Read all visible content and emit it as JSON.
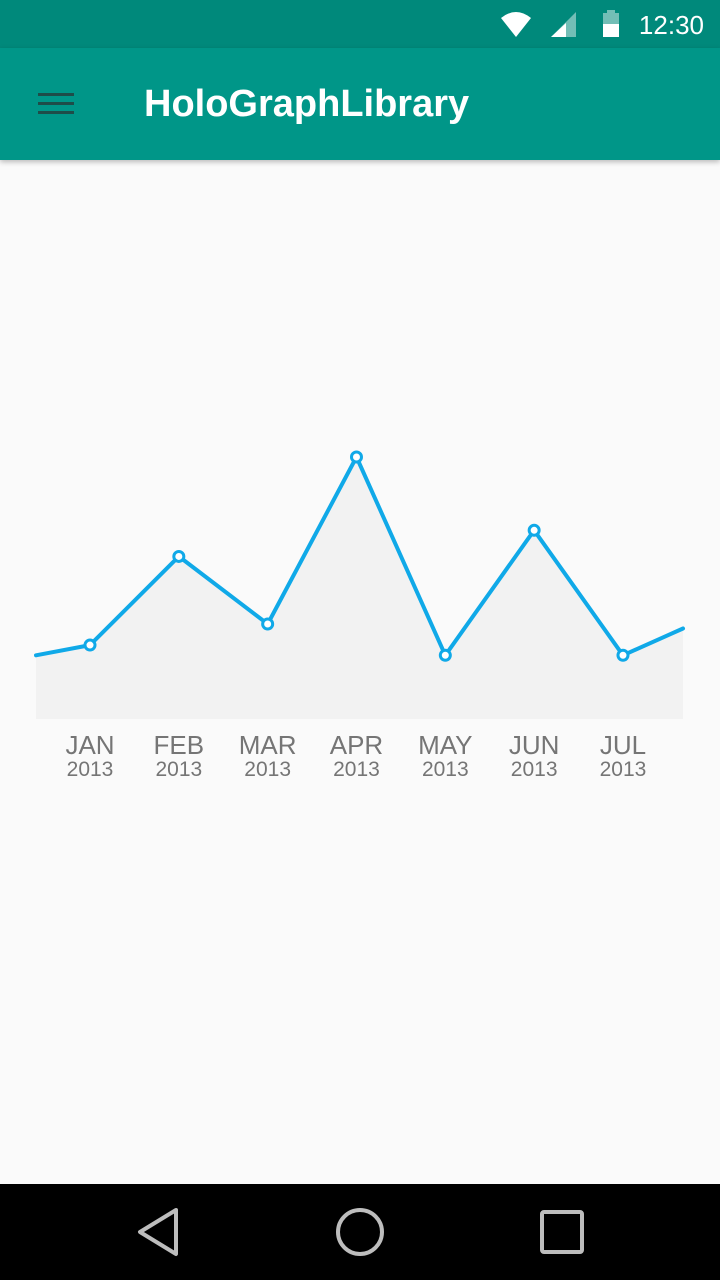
{
  "status_bar": {
    "time": "12:30",
    "icons": [
      "wifi-icon",
      "cell-signal-icon",
      "battery-icon"
    ]
  },
  "app_bar": {
    "title": "HoloGraphLibrary",
    "menu_icon": "hamburger-menu-icon"
  },
  "nav_bar": {
    "icons": [
      "back-triangle-icon",
      "home-circle-icon",
      "recents-square-icon"
    ]
  },
  "colors": {
    "status_bar": "#00897b",
    "app_bar": "#009688",
    "line": "#10a9e8",
    "fill": "#f2f2f2",
    "label": "#757575",
    "background": "#fafafa"
  },
  "chart_data": {
    "type": "area",
    "categories": [
      "JAN",
      "FEB",
      "MAR",
      "APR",
      "MAY",
      "JUN",
      "JUL"
    ],
    "sublabels": [
      "2013",
      "2013",
      "2013",
      "2013",
      "2013",
      "2013",
      "2013"
    ],
    "values": [
      1.16,
      2.55,
      1.49,
      4.11,
      1.0,
      2.96,
      1.0
    ],
    "start_value": 1.0,
    "end_value": 1.42,
    "ylim": [
      0,
      4.11
    ],
    "grid": false,
    "markers": true
  }
}
